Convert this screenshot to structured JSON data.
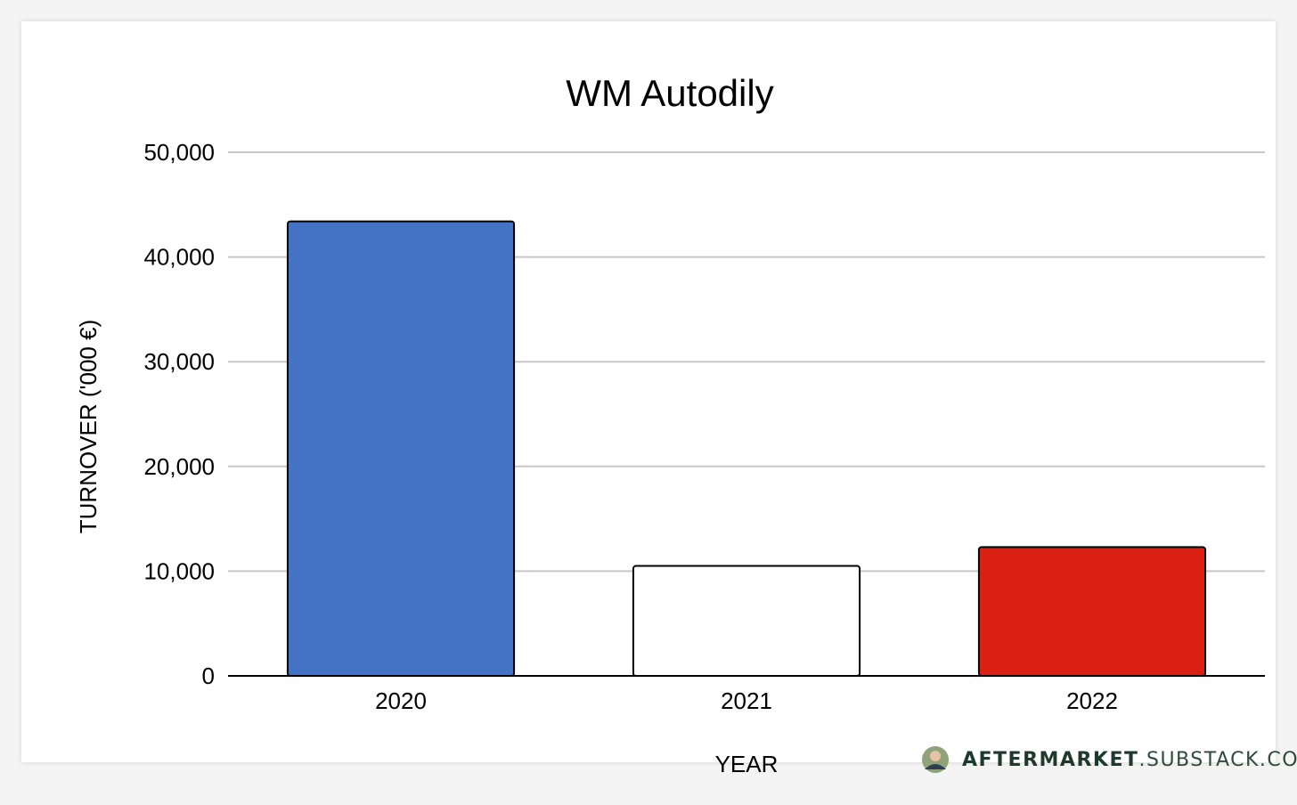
{
  "chart_data": {
    "type": "bar",
    "title": "WM Autodily",
    "xlabel": "YEAR",
    "ylabel": "TURNOVER ('000 €)",
    "categories": [
      "2020",
      "2021",
      "2022"
    ],
    "values": [
      43400,
      10500,
      12300
    ],
    "bar_colors": [
      "#4472c4",
      "#ffffff",
      "#da2013"
    ],
    "ylim": [
      0,
      50000
    ],
    "yticks": [
      0,
      10000,
      20000,
      30000,
      40000,
      50000
    ],
    "ytick_labels": [
      "0",
      "10,000",
      "20,000",
      "30,000",
      "40,000",
      "50,000"
    ],
    "grid": true,
    "legend": "none"
  },
  "watermark": {
    "brand_bold": "AFTERMARKET",
    "brand_rest": ".SUBSTACK.COM",
    "bold_color": "#1f3a2c",
    "rest_color": "#2e4a3c"
  }
}
